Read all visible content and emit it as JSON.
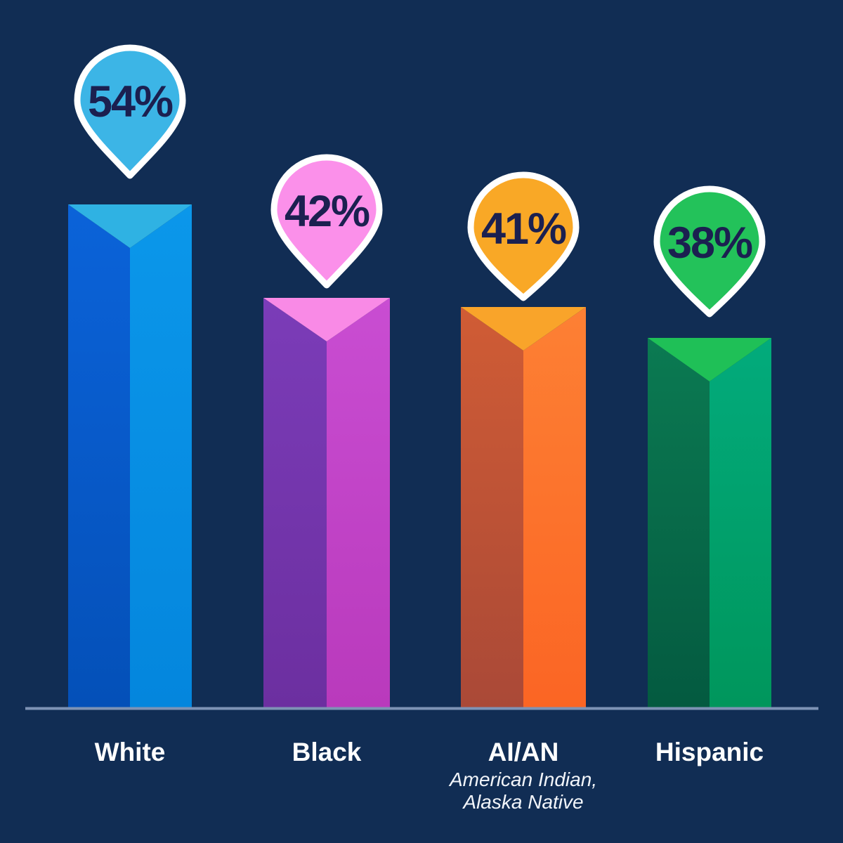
{
  "background_color": "#112D54",
  "chart_data": {
    "type": "bar",
    "orientation": "vertical",
    "title": "",
    "categories": [
      "White",
      "Black",
      "AI/AN",
      "Hispanic"
    ],
    "values": [
      54,
      42,
      41,
      38
    ],
    "value_labels": [
      "54%",
      "42%",
      "41%",
      "38%"
    ],
    "ylim": [
      0,
      60
    ],
    "grid": false,
    "legend": false,
    "value_callouts": "teardrop-pin-markers-above-bars",
    "baseline_color": "#7E93B5",
    "value_label_color": "#1B2050",
    "category_label_color": "#FFFFFF",
    "category_sublabel_color": "#F2F5FA",
    "pin_border_color": "#FFFFFF",
    "bars": [
      {
        "label": "White",
        "sublabel_lines": [],
        "value": 54,
        "value_label": "54%",
        "colors": {
          "pin": "#3CB5E6",
          "top": "#2FB2E3",
          "left_top": "#0B63D9",
          "left_bottom": "#0450B8",
          "right_top": "#0B97EA",
          "right_bottom": "#0486DD"
        }
      },
      {
        "label": "Black",
        "sublabel_lines": [],
        "value": 42,
        "value_label": "42%",
        "colors": {
          "pin": "#FB90EA",
          "top": "#F98AE6",
          "left_top": "#7B3CB8",
          "left_bottom": "#6C2FA0",
          "right_top": "#C94DD2",
          "right_bottom": "#B93ABC"
        }
      },
      {
        "label": "AI/AN",
        "sublabel_lines": [
          "American Indian,",
          "Alaska Native"
        ],
        "value": 41,
        "value_label": "41%",
        "colors": {
          "pin": "#F9A826",
          "top": "#F9A42A",
          "left_top": "#D05C35",
          "left_bottom": "#AA4937",
          "right_top": "#FD8034",
          "right_bottom": "#FB6524"
        }
      },
      {
        "label": "Hispanic",
        "sublabel_lines": [],
        "value": 38,
        "value_label": "38%",
        "colors": {
          "pin": "#23C25A",
          "top": "#1FC057",
          "left_top": "#0B7A52",
          "left_bottom": "#045A40",
          "right_top": "#02AB7C",
          "right_bottom": "#00965C"
        }
      }
    ]
  }
}
